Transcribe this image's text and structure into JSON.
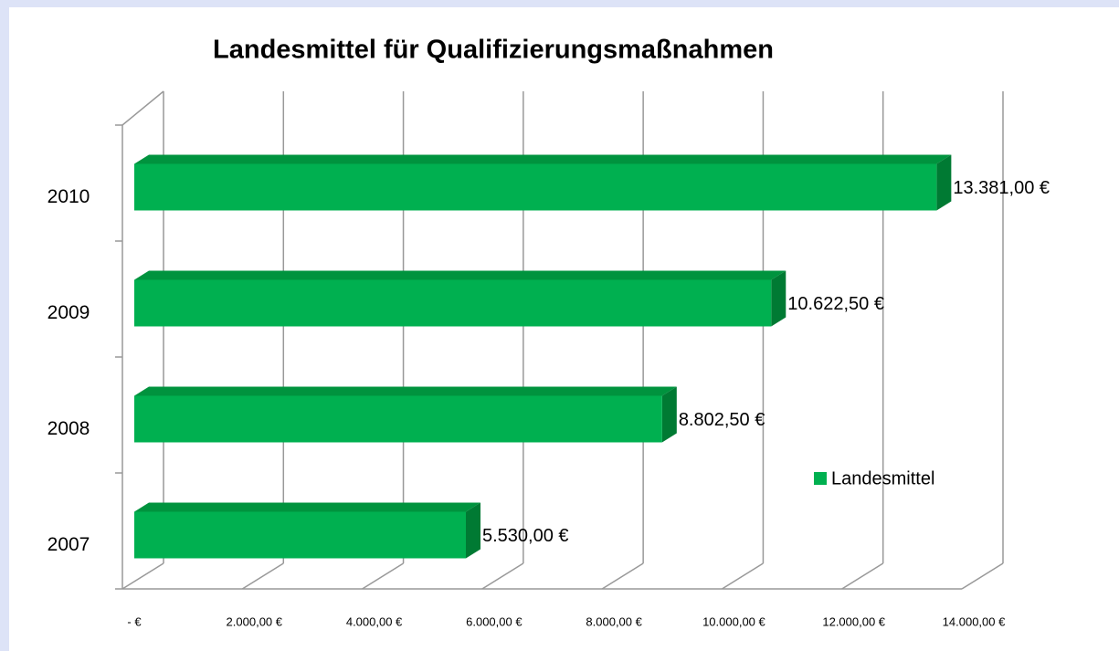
{
  "chart_data": {
    "type": "bar",
    "orientation": "horizontal",
    "title": "Landesmittel für Qualifizierungsmaßnahmen",
    "categories": [
      "2007",
      "2008",
      "2009",
      "2010"
    ],
    "series": [
      {
        "name": "Landesmittel",
        "color": "#00b050",
        "values": [
          5530,
          8802.5,
          10622.5,
          13381
        ],
        "value_labels": [
          "5.530,00 €",
          "8.802,50 €",
          "10.622,50 €",
          "13.381,00 €"
        ]
      }
    ],
    "xlim": [
      0,
      14000
    ],
    "xticks": [
      {
        "value": 0,
        "label": "-   €"
      },
      {
        "value": 2000,
        "label": "2.000,00 €"
      },
      {
        "value": 4000,
        "label": "4.000,00 €"
      },
      {
        "value": 6000,
        "label": "6.000,00 €"
      },
      {
        "value": 8000,
        "label": "8.000,00 €"
      },
      {
        "value": 10000,
        "label": "10.000,00 €"
      },
      {
        "value": 12000,
        "label": "12.000,00 €"
      },
      {
        "value": 14000,
        "label": "14.000,00 €"
      }
    ],
    "grid": true,
    "legend": "right"
  }
}
